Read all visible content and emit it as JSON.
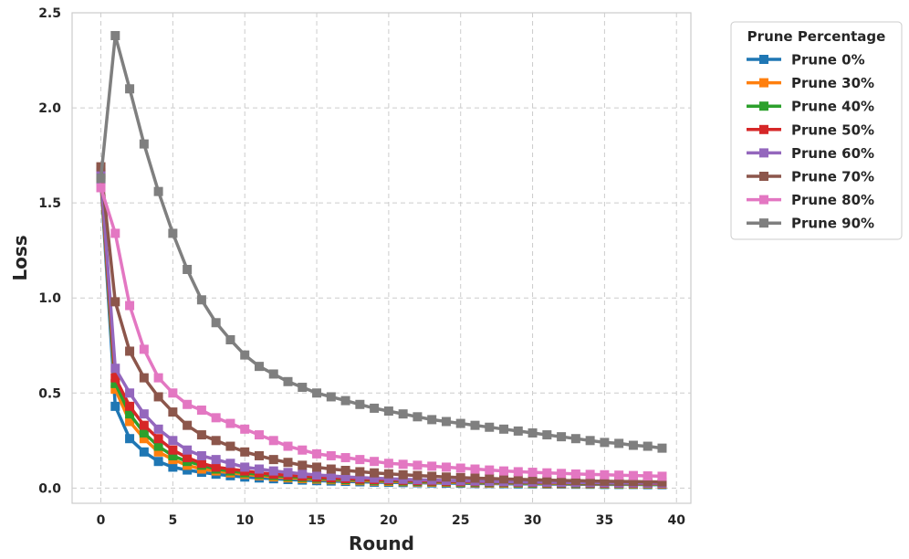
{
  "chart_data": {
    "type": "line",
    "title": "",
    "xlabel": "Round",
    "ylabel": "Loss",
    "xlim": [
      -2,
      41
    ],
    "ylim": [
      -0.08,
      2.5
    ],
    "xticks": [
      0,
      5,
      10,
      15,
      20,
      25,
      30,
      35,
      40
    ],
    "yticks": [
      0.0,
      0.5,
      1.0,
      1.5,
      2.0,
      2.5
    ],
    "grid": true,
    "legend": {
      "title": "Prune Percentage",
      "placement": "outside-top-right"
    },
    "x": [
      0,
      1,
      2,
      3,
      4,
      5,
      6,
      7,
      8,
      9,
      10,
      11,
      12,
      13,
      14,
      15,
      16,
      17,
      18,
      19,
      20,
      21,
      22,
      23,
      24,
      25,
      26,
      27,
      28,
      29,
      30,
      31,
      32,
      33,
      34,
      35,
      36,
      37,
      38,
      39
    ],
    "series": [
      {
        "name": "Prune 0%",
        "color": "#1f77b4",
        "values": [
          1.62,
          0.43,
          0.26,
          0.19,
          0.14,
          0.11,
          0.095,
          0.083,
          0.073,
          0.065,
          0.058,
          0.053,
          0.049,
          0.045,
          0.042,
          0.039,
          0.037,
          0.035,
          0.033,
          0.031,
          0.03,
          0.029,
          0.028,
          0.027,
          0.026,
          0.025,
          0.024,
          0.024,
          0.023,
          0.022,
          0.022,
          0.021,
          0.021,
          0.02,
          0.02,
          0.019,
          0.019,
          0.019,
          0.018,
          0.018
        ]
      },
      {
        "name": "Prune 30%",
        "color": "#ff7f0e",
        "values": [
          1.63,
          0.52,
          0.35,
          0.26,
          0.19,
          0.15,
          0.12,
          0.1,
          0.09,
          0.08,
          0.072,
          0.065,
          0.059,
          0.054,
          0.05,
          0.047,
          0.044,
          0.041,
          0.039,
          0.037,
          0.035,
          0.034,
          0.032,
          0.031,
          0.03,
          0.029,
          0.028,
          0.027,
          0.026,
          0.026,
          0.025,
          0.024,
          0.024,
          0.023,
          0.023,
          0.022,
          0.022,
          0.021,
          0.021,
          0.021
        ]
      },
      {
        "name": "Prune 40%",
        "color": "#2ca02c",
        "values": [
          1.64,
          0.55,
          0.39,
          0.29,
          0.22,
          0.17,
          0.14,
          0.12,
          0.1,
          0.09,
          0.08,
          0.072,
          0.066,
          0.06,
          0.056,
          0.052,
          0.048,
          0.045,
          0.043,
          0.041,
          0.039,
          0.037,
          0.035,
          0.034,
          0.033,
          0.032,
          0.031,
          0.03,
          0.029,
          0.028,
          0.027,
          0.027,
          0.026,
          0.025,
          0.025,
          0.024,
          0.024,
          0.023,
          0.023,
          0.023
        ]
      },
      {
        "name": "Prune 50%",
        "color": "#d62728",
        "values": [
          1.65,
          0.58,
          0.43,
          0.33,
          0.26,
          0.2,
          0.16,
          0.13,
          0.11,
          0.1,
          0.09,
          0.08,
          0.073,
          0.067,
          0.062,
          0.057,
          0.053,
          0.05,
          0.047,
          0.045,
          0.043,
          0.041,
          0.039,
          0.037,
          0.036,
          0.035,
          0.034,
          0.033,
          0.032,
          0.031,
          0.03,
          0.029,
          0.028,
          0.028,
          0.027,
          0.026,
          0.026,
          0.025,
          0.025,
          0.024
        ]
      },
      {
        "name": "Prune 60%",
        "color": "#9467bd",
        "values": [
          1.66,
          0.63,
          0.5,
          0.39,
          0.31,
          0.25,
          0.2,
          0.17,
          0.15,
          0.13,
          0.11,
          0.1,
          0.09,
          0.082,
          0.075,
          0.069,
          0.064,
          0.059,
          0.055,
          0.052,
          0.049,
          0.046,
          0.044,
          0.042,
          0.04,
          0.038,
          0.037,
          0.035,
          0.034,
          0.033,
          0.032,
          0.031,
          0.03,
          0.029,
          0.029,
          0.028,
          0.027,
          0.027,
          0.026,
          0.026
        ]
      },
      {
        "name": "Prune 70%",
        "color": "#8c564b",
        "values": [
          1.69,
          0.98,
          0.72,
          0.58,
          0.48,
          0.4,
          0.33,
          0.28,
          0.25,
          0.22,
          0.19,
          0.17,
          0.15,
          0.135,
          0.12,
          0.11,
          0.1,
          0.093,
          0.086,
          0.08,
          0.075,
          0.07,
          0.066,
          0.062,
          0.058,
          0.055,
          0.052,
          0.05,
          0.048,
          0.046,
          0.044,
          0.042,
          0.04,
          0.039,
          0.037,
          0.036,
          0.035,
          0.034,
          0.033,
          0.032
        ]
      },
      {
        "name": "Prune 80%",
        "color": "#e377c2",
        "values": [
          1.58,
          1.34,
          0.96,
          0.73,
          0.58,
          0.5,
          0.44,
          0.41,
          0.37,
          0.34,
          0.31,
          0.28,
          0.25,
          0.22,
          0.2,
          0.18,
          0.17,
          0.16,
          0.15,
          0.14,
          0.13,
          0.125,
          0.12,
          0.115,
          0.11,
          0.105,
          0.1,
          0.095,
          0.09,
          0.086,
          0.083,
          0.08,
          0.077,
          0.074,
          0.072,
          0.07,
          0.068,
          0.066,
          0.064,
          0.062
        ]
      },
      {
        "name": "Prune 90%",
        "color": "#7f7f7f",
        "values": [
          1.63,
          2.38,
          2.1,
          1.81,
          1.56,
          1.34,
          1.15,
          0.99,
          0.87,
          0.78,
          0.7,
          0.64,
          0.6,
          0.56,
          0.53,
          0.5,
          0.48,
          0.46,
          0.44,
          0.42,
          0.405,
          0.39,
          0.375,
          0.36,
          0.35,
          0.34,
          0.33,
          0.32,
          0.31,
          0.3,
          0.29,
          0.28,
          0.27,
          0.26,
          0.25,
          0.24,
          0.235,
          0.225,
          0.22,
          0.21
        ]
      }
    ]
  }
}
